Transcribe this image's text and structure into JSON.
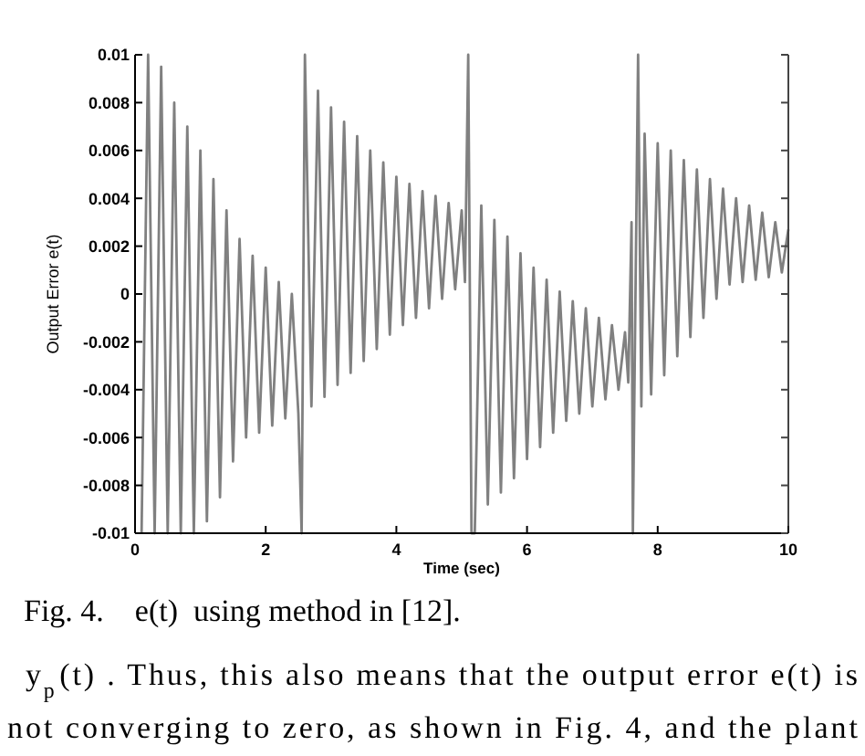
{
  "chart_data": {
    "type": "line",
    "xlabel": "Time (sec)",
    "ylabel": "Output Error e(t)",
    "xlim": [
      0,
      10
    ],
    "ylim": [
      -0.01,
      0.01
    ],
    "xticks": [
      0,
      2,
      4,
      6,
      8,
      10
    ],
    "yticks": [
      {
        "value": -0.01,
        "label": "-0.01"
      },
      {
        "value": -0.008,
        "label": "-0.008"
      },
      {
        "value": -0.006,
        "label": "-0.006"
      },
      {
        "value": -0.004,
        "label": "-0.004"
      },
      {
        "value": -0.002,
        "label": "-0.002"
      },
      0,
      {
        "value": 0.002,
        "label": "0.002"
      },
      {
        "value": 0.004,
        "label": "0.004"
      },
      {
        "value": 0.006,
        "label": "0.006"
      },
      {
        "value": 0.008,
        "label": "0.008"
      },
      {
        "value": 0.01,
        "label": "0.01"
      }
    ],
    "grid": false,
    "series": [
      {
        "color": "#808080",
        "x": [
          0.1,
          0.2,
          0.3,
          0.4,
          0.5,
          0.6,
          0.7,
          0.8,
          0.9,
          1.0,
          1.1,
          1.2,
          1.3,
          1.4,
          1.5,
          1.6,
          1.7,
          1.8,
          1.9,
          2.0,
          2.1,
          2.2,
          2.3,
          2.4,
          2.5,
          2.55,
          2.6,
          2.7,
          2.8,
          2.9,
          3.0,
          3.1,
          3.2,
          3.3,
          3.4,
          3.5,
          3.6,
          3.7,
          3.8,
          3.9,
          4.0,
          4.1,
          4.2,
          4.3,
          4.4,
          4.5,
          4.6,
          4.7,
          4.8,
          4.9,
          5.0,
          5.05,
          5.1,
          5.15,
          5.2,
          5.3,
          5.4,
          5.5,
          5.6,
          5.7,
          5.8,
          5.9,
          6.0,
          6.1,
          6.2,
          6.3,
          6.4,
          6.5,
          6.6,
          6.7,
          6.8,
          6.9,
          7.0,
          7.1,
          7.2,
          7.3,
          7.4,
          7.5,
          7.55,
          7.6,
          7.62,
          7.7,
          7.75,
          7.8,
          7.9,
          8.0,
          8.1,
          8.2,
          8.3,
          8.4,
          8.5,
          8.6,
          8.7,
          8.8,
          8.9,
          9.0,
          9.1,
          9.2,
          9.3,
          9.4,
          9.5,
          9.6,
          9.7,
          9.8,
          9.9,
          10
        ],
        "values": [
          -0.01,
          0.01,
          -0.01,
          0.0095,
          -0.01,
          0.008,
          -0.01,
          0.007,
          -0.01,
          0.006,
          -0.0095,
          0.0048,
          -0.0085,
          0.0035,
          -0.007,
          0.0023,
          -0.006,
          0.0016,
          -0.0058,
          0.0011,
          -0.0055,
          0.0005,
          -0.0052,
          0,
          -0.005,
          -0.01,
          0.01,
          -0.0047,
          0.0085,
          -0.0043,
          0.0078,
          -0.0038,
          0.0072,
          -0.0033,
          0.0066,
          -0.0028,
          0.006,
          -0.0023,
          0.0055,
          -0.0017,
          0.0049,
          -0.0013,
          0.0046,
          -0.001,
          0.0043,
          -0.0006,
          0.0041,
          -0.0002,
          0.0038,
          0.0002,
          0.0035,
          0.0005,
          0.01,
          -0.01,
          -0.01,
          0.0037,
          -0.0088,
          0.0031,
          -0.0083,
          0.0024,
          -0.0077,
          0.0017,
          -0.0069,
          0.0011,
          -0.0064,
          0.0006,
          -0.0058,
          0.0001,
          -0.0053,
          -0.0003,
          -0.005,
          -0.0006,
          -0.0047,
          -0.001,
          -0.0044,
          -0.0013,
          -0.004,
          -0.0016,
          -0.0037,
          0.003,
          -0.01,
          0.01,
          -0.0047,
          0.0067,
          -0.0042,
          0.0063,
          -0.0034,
          0.006,
          -0.0026,
          0.0056,
          -0.0018,
          0.0052,
          -0.001,
          0.0048,
          -0.0002,
          0.0044,
          0.0004,
          0.004,
          0.0005,
          0.0037,
          0.0006,
          0.0034,
          0.0007,
          0.003,
          0.0009,
          0.0027
        ]
      }
    ],
    "annotations": [
      "Fig. 4.    e(t)  using method in [12].",
      "y$_{p}$(t) . Thus, this also means that the output error e(t) is",
      "not converging to zero, as shown in Fig. 4, and the plant"
    ]
  }
}
